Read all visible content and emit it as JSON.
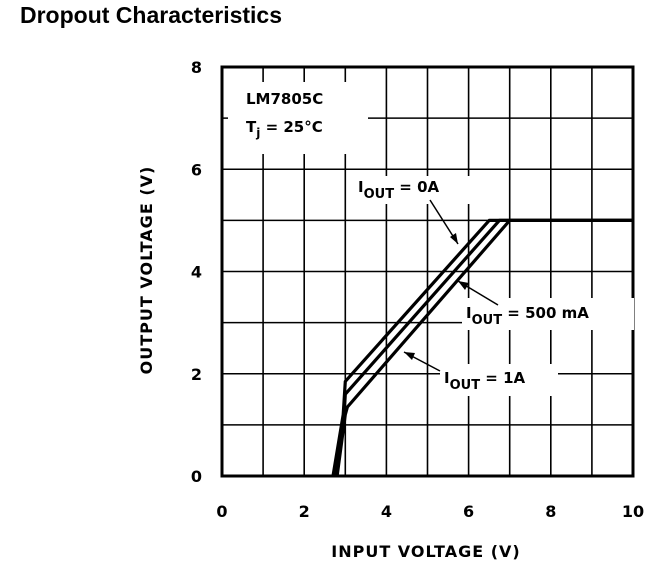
{
  "chart_data": {
    "type": "line",
    "title": "Dropout Characteristics",
    "xlabel": "INPUT VOLTAGE (V)",
    "ylabel": "OUTPUT VOLTAGE (V)",
    "xlim": [
      0,
      10
    ],
    "ylim": [
      0,
      8
    ],
    "x_ticks": [
      0,
      2,
      4,
      6,
      8,
      10
    ],
    "y_ticks": [
      0,
      2,
      4,
      6,
      8
    ],
    "x_tick_labels": [
      "0",
      "2",
      "4",
      "6",
      "8",
      "10"
    ],
    "y_tick_labels": [
      "0",
      "2",
      "4",
      "6",
      "8"
    ],
    "grid": true,
    "annotation": {
      "device": "LM7805C",
      "condition_prefix": "T",
      "condition_sub": "j",
      "condition_suffix": " = 25°C"
    },
    "series": [
      {
        "name": "I_OUT = 0A",
        "label_main": "I",
        "label_sub": "OUT",
        "label_value": " = 0A",
        "x": [
          2.7,
          2.95,
          3.0,
          6.5,
          10.0
        ],
        "y": [
          0.0,
          1.2,
          1.85,
          5.0,
          5.0
        ]
      },
      {
        "name": "I_OUT = 500 mA",
        "label_main": "I",
        "label_sub": "OUT",
        "label_value": " = 500 mA",
        "x": [
          2.75,
          2.97,
          3.0,
          6.75,
          10.0
        ],
        "y": [
          0.0,
          1.2,
          1.6,
          5.0,
          5.0
        ]
      },
      {
        "name": "I_OUT = 1A",
        "label_main": "I",
        "label_sub": "OUT",
        "label_value": " = 1A",
        "x": [
          2.8,
          3.0,
          3.05,
          7.0,
          10.0
        ],
        "y": [
          0.0,
          1.2,
          1.35,
          5.0,
          5.0
        ]
      }
    ]
  }
}
